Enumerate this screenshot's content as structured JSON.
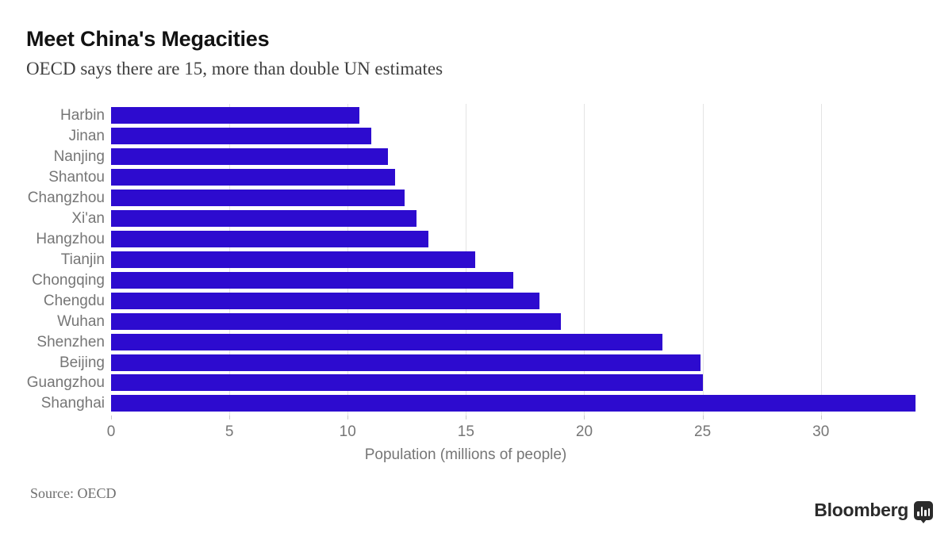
{
  "header": {
    "title": "Meet China's Megacities",
    "subtitle": "OECD says there are 15, more than double UN estimates"
  },
  "chart_data": {
    "type": "bar",
    "orientation": "horizontal",
    "categories": [
      "Harbin",
      "Jinan",
      "Nanjing",
      "Shantou",
      "Changzhou",
      "Xi'an",
      "Hangzhou",
      "Tianjin",
      "Chongqing",
      "Chengdu",
      "Wuhan",
      "Shenzhen",
      "Beijing",
      "Guangzhou",
      "Shanghai"
    ],
    "values": [
      10.5,
      11.0,
      11.7,
      12.0,
      12.4,
      12.9,
      13.4,
      15.4,
      17.0,
      18.1,
      19.0,
      23.3,
      24.9,
      25.0,
      34.0
    ],
    "title": "Meet China's Megacities",
    "subtitle": "OECD says there are 15, more than double UN estimates",
    "xlabel": "Population (millions of people)",
    "ylabel": "",
    "xlim": [
      0,
      34
    ],
    "xticks": [
      0,
      5,
      10,
      15,
      20,
      25,
      30
    ],
    "grid": true,
    "legend": "none",
    "bar_color": "#2d0bcf"
  },
  "colors": {
    "bar": "#2d0bcf",
    "gridline": "#e4e4e4",
    "tick": "#c9c9c9",
    "label_gray": "#767676",
    "title": "#121212",
    "subtitle": "#3f3f3f",
    "source": "#6e6e6e",
    "brand": "#2b2b2b"
  },
  "footer": {
    "source_label": "Source: OECD",
    "brand_name": "Bloomberg",
    "brand_icon": "bar-chart-speech-bubble-icon"
  }
}
